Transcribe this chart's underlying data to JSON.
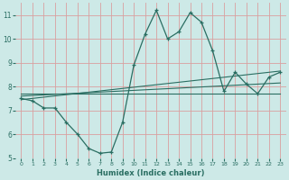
{
  "xlabel": "Humidex (Indice chaleur)",
  "background_color": "#cde9e7",
  "grid_color": "#d9a0a0",
  "line_color": "#2a6e62",
  "xlim": [
    -0.5,
    23.5
  ],
  "ylim": [
    5,
    11.5
  ],
  "xticks": [
    0,
    1,
    2,
    3,
    4,
    5,
    6,
    7,
    8,
    9,
    10,
    11,
    12,
    13,
    14,
    15,
    16,
    17,
    18,
    19,
    20,
    21,
    22,
    23
  ],
  "yticks": [
    5,
    6,
    7,
    8,
    9,
    10,
    11
  ],
  "series": {
    "line1_x": [
      0,
      1,
      2,
      3,
      4,
      5,
      6,
      7,
      8,
      9,
      10,
      11,
      12,
      13,
      14,
      15,
      16,
      17,
      18,
      19,
      20,
      21,
      22,
      23
    ],
    "line1_y": [
      7.5,
      7.4,
      7.1,
      7.1,
      6.5,
      6.0,
      5.4,
      5.2,
      5.25,
      6.5,
      8.9,
      10.2,
      11.2,
      10.0,
      10.3,
      11.1,
      10.7,
      9.5,
      7.8,
      8.6,
      8.1,
      7.7,
      8.4,
      8.6
    ],
    "line2_x": [
      0,
      23
    ],
    "line2_y": [
      7.45,
      8.65
    ],
    "line3_x": [
      0,
      23
    ],
    "line3_y": [
      7.6,
      8.15
    ],
    "line4_x": [
      0,
      23
    ],
    "line4_y": [
      7.72,
      7.72
    ]
  }
}
